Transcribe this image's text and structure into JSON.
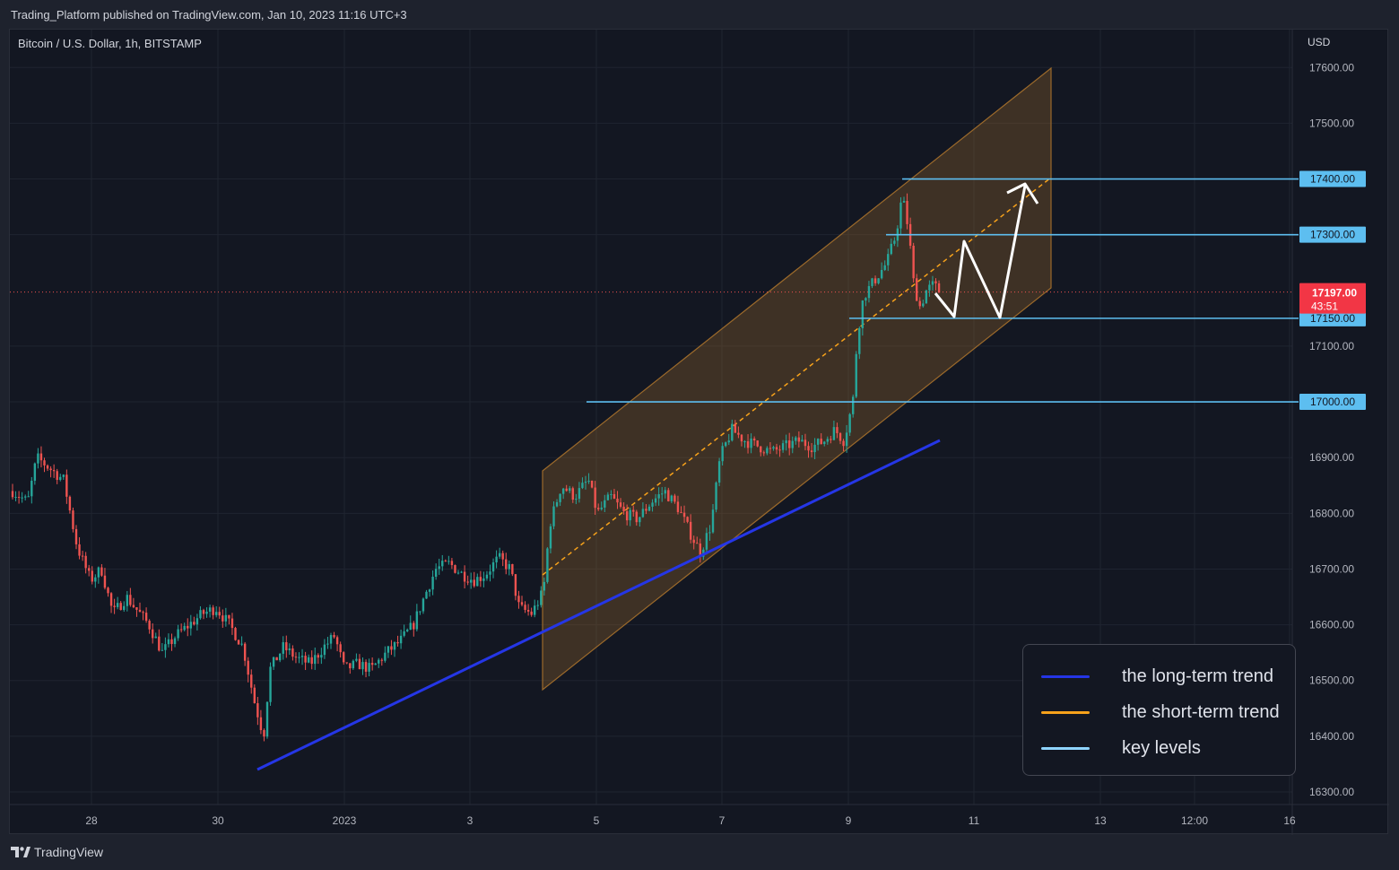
{
  "header": {
    "published": "Trading_Platform published on TradingView.com, Jan 10, 2023 11:16 UTC+3"
  },
  "chart_data": {
    "type": "candlestick",
    "symbol": "Bitcoin / U.S. Dollar, 1h, BITSTAMP",
    "currency": "USD",
    "y_ticks": [
      "17600.00",
      "17500.00",
      "17400.00",
      "17300.00",
      "17100.00",
      "17000.00",
      "16900.00",
      "16800.00",
      "16700.00",
      "16600.00",
      "16500.00",
      "16400.00",
      "16300.00"
    ],
    "x_ticks": [
      "28",
      "30",
      "2023",
      "3",
      "5",
      "7",
      "9",
      "11",
      "13",
      "12:00",
      "16"
    ],
    "ylim": [
      16280,
      17645
    ],
    "grid": true,
    "key_levels": [
      17400.0,
      17300.0,
      17150.0,
      17000.0
    ],
    "key_level_labels": [
      "17400.00",
      "17300.00",
      "17150.00",
      "17000.00"
    ],
    "last_price": {
      "value": "17197.00",
      "countdown": "43:51"
    },
    "price_path_approx": [
      [
        "27 00:00",
        16840
      ],
      [
        "27 12:00",
        16880
      ],
      [
        "28 00:00",
        16790
      ],
      [
        "28 12:00",
        16660
      ],
      [
        "29 00:00",
        16640
      ],
      [
        "29 12:00",
        16570
      ],
      [
        "30 00:00",
        16620
      ],
      [
        "30 12:00",
        16500
      ],
      [
        "31 00:00",
        16420
      ],
      [
        "31 12:00",
        16560
      ],
      [
        "Jan 1 00:00",
        16540
      ],
      [
        "Jan 1 12:00",
        16520
      ],
      [
        "Jan 2 00:00",
        16560
      ],
      [
        "Jan 2 12:00",
        16680
      ],
      [
        "Jan 3 00:00",
        16710
      ],
      [
        "Jan 3 12:00",
        16640
      ],
      [
        "Jan 4 00:00",
        16820
      ],
      [
        "Jan 4 12:00",
        16850
      ],
      [
        "Jan 5 00:00",
        16820
      ],
      [
        "Jan 5 12:00",
        16780
      ],
      [
        "Jan 6 00:00",
        16810
      ],
      [
        "Jan 6 12:00",
        16720
      ],
      [
        "Jan 7 00:00",
        16950
      ],
      [
        "Jan 7 12:00",
        16920
      ],
      [
        "Jan 8 00:00",
        16930
      ],
      [
        "Jan 8 12:00",
        16940
      ],
      [
        "Jan 9 00:00",
        17000
      ],
      [
        "Jan 9 12:00",
        17200
      ],
      [
        "Jan 9 20:00",
        17370
      ],
      [
        "Jan 10 00:00",
        17200
      ],
      [
        "Jan 10 11:00",
        17197
      ]
    ]
  },
  "legend": {
    "items": [
      {
        "label": "the long-term trend",
        "color": "#2536e6"
      },
      {
        "label": "the short-term trend",
        "color": "#f7a21b"
      },
      {
        "label": "key levels",
        "color": "#8fd4ff"
      }
    ]
  },
  "colors": {
    "up": "#26a69a",
    "down": "#ef5350",
    "level": "#5dbef0",
    "channel": "#9c6a2b"
  },
  "footer": {
    "brand": "TradingView"
  }
}
